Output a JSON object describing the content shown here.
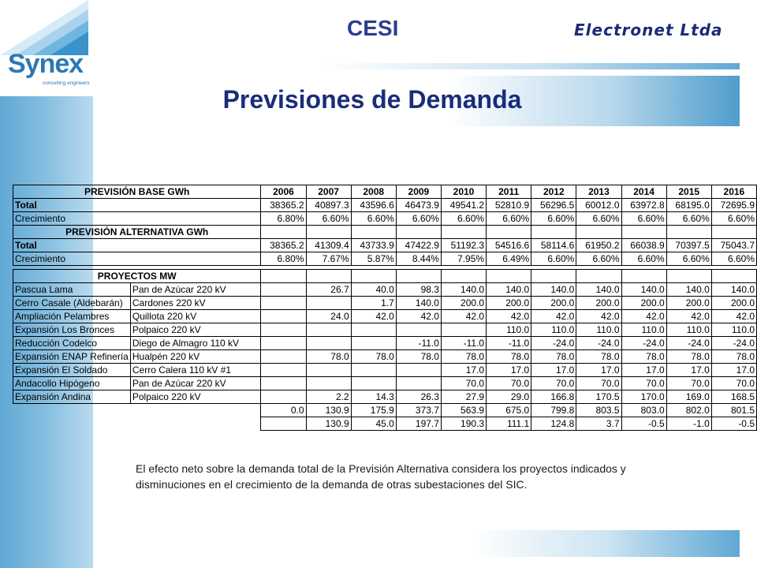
{
  "header": {
    "title": "CESI",
    "company": "Electronet Ltda",
    "logo_name": "Synex",
    "logo_tagline": "consulting engineers",
    "page_title": "Previsiones de Demanda"
  },
  "table": {
    "years": [
      "2006",
      "2007",
      "2008",
      "2009",
      "2010",
      "2011",
      "2012",
      "2013",
      "2014",
      "2015",
      "2016"
    ],
    "base": {
      "title": "PREVISIÓN BASE GWh",
      "rows": [
        {
          "label": "Total",
          "bold": true,
          "values": [
            "38365.2",
            "40897.3",
            "43596.6",
            "46473.9",
            "49541.2",
            "52810.9",
            "56296.5",
            "60012.0",
            "63972.8",
            "68195.0",
            "72695.9"
          ]
        },
        {
          "label": "Crecimiento",
          "bold": false,
          "values": [
            "6.80%",
            "6.60%",
            "6.60%",
            "6.60%",
            "6.60%",
            "6.60%",
            "6.60%",
            "6.60%",
            "6.60%",
            "6.60%",
            "6.60%"
          ]
        }
      ]
    },
    "alternative": {
      "title": "PREVISIÓN ALTERNATIVA GWh",
      "rows": [
        {
          "label": "Total",
          "bold": true,
          "values": [
            "38365.2",
            "41309.4",
            "43733.9",
            "47422.9",
            "51192.3",
            "54516.6",
            "58114.6",
            "61950.2",
            "66038.9",
            "70397.5",
            "75043.7"
          ]
        },
        {
          "label": "Crecimiento",
          "bold": false,
          "values": [
            "6.80%",
            "7.67%",
            "5.87%",
            "8.44%",
            "7.95%",
            "6.49%",
            "6.60%",
            "6.60%",
            "6.60%",
            "6.60%",
            "6.60%"
          ]
        }
      ]
    },
    "projects": {
      "title": "PROYECTOS MW",
      "rows": [
        {
          "project": "Pascua Lama",
          "substation": "Pan de Azúcar 220 kV",
          "values": [
            "",
            "26.7",
            "40.0",
            "98.3",
            "140.0",
            "140.0",
            "140.0",
            "140.0",
            "140.0",
            "140.0",
            "140.0"
          ]
        },
        {
          "project": "Cerro Casale (Aldebarán)",
          "substation": "Cardones 220 kV",
          "values": [
            "",
            "",
            "1.7",
            "140.0",
            "200.0",
            "200.0",
            "200.0",
            "200.0",
            "200.0",
            "200.0",
            "200.0"
          ]
        },
        {
          "project": "Ampliación Pelambres",
          "substation": "Quillota 220 kV",
          "values": [
            "",
            "24.0",
            "42.0",
            "42.0",
            "42.0",
            "42.0",
            "42.0",
            "42.0",
            "42.0",
            "42.0",
            "42.0"
          ]
        },
        {
          "project": "Expansión Los Bronces",
          "substation": "Polpaico 220 kV",
          "values": [
            "",
            "",
            "",
            "",
            "",
            "110.0",
            "110.0",
            "110.0",
            "110.0",
            "110.0",
            "110.0"
          ]
        },
        {
          "project": "Reducción Codelco",
          "substation": "Diego de Almagro 110 kV",
          "values": [
            "",
            "",
            "",
            "-11.0",
            "-11.0",
            "-11.0",
            "-24.0",
            "-24.0",
            "-24.0",
            "-24.0",
            "-24.0"
          ]
        },
        {
          "project": "Expansión ENAP Refinería",
          "substation": "Hualpén 220 kV",
          "values": [
            "",
            "78.0",
            "78.0",
            "78.0",
            "78.0",
            "78.0",
            "78.0",
            "78.0",
            "78.0",
            "78.0",
            "78.0"
          ]
        },
        {
          "project": "Expansión El Soldado",
          "substation": "Cerro Calera 110 kV #1",
          "values": [
            "",
            "",
            "",
            "",
            "17.0",
            "17.0",
            "17.0",
            "17.0",
            "17.0",
            "17.0",
            "17.0"
          ]
        },
        {
          "project": "Andacollo Hipógeno",
          "substation": "Pan de Azúcar 220 kV",
          "values": [
            "",
            "",
            "",
            "",
            "70.0",
            "70.0",
            "70.0",
            "70.0",
            "70.0",
            "70.0",
            "70.0"
          ]
        },
        {
          "project": "Expansión Andina",
          "substation": "Polpaico 220 kV",
          "values": [
            "",
            "2.2",
            "14.3",
            "26.3",
            "27.9",
            "29.0",
            "166.8",
            "170.5",
            "170.0",
            "169.0",
            "168.5"
          ]
        }
      ],
      "total_row": [
        "0.0",
        "130.9",
        "175.9",
        "373.7",
        "563.9",
        "675.0",
        "799.8",
        "803.5",
        "803.0",
        "802.0",
        "801.5"
      ],
      "diff_row": [
        "",
        "130.9",
        "45.0",
        "197.7",
        "190.3",
        "111.1",
        "124.8",
        "3.7",
        "-0.5",
        "-1.0",
        "-0.5"
      ]
    }
  },
  "note": "El efecto neto sobre la demanda total de la Previsión Alternativa considera los proyectos indicados y disminuciones en el crecimiento de la demanda de otras subestaciones del SIC."
}
